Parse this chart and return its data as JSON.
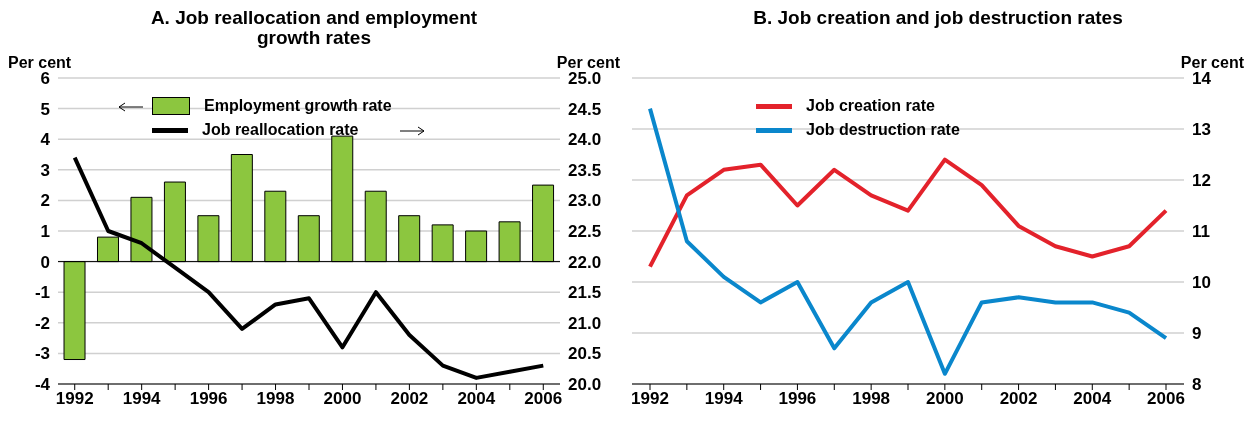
{
  "chart_data": [
    {
      "type": "bar",
      "title": "A. Job reallocation and employment growth rates",
      "ylabel": "Per cent",
      "y2label": "Per cent",
      "categories": [
        "1992",
        null,
        "1994",
        null,
        "1996",
        null,
        "1998",
        null,
        "2000",
        null,
        "2002",
        null,
        "2004",
        null,
        "2006"
      ],
      "series": [
        {
          "name": "Employment growth rate",
          "type": "bar",
          "color": "#8cc63f",
          "values": [
            -3.2,
            0.8,
            2.1,
            2.6,
            1.5,
            3.5,
            2.3,
            1.5,
            4.1,
            2.3,
            1.5,
            1.2,
            1.0,
            1.3,
            2.5
          ]
        },
        {
          "name": "Job reallocation rate",
          "type": "line",
          "axis": "y2",
          "color": "#000000",
          "values": [
            23.7,
            22.5,
            22.3,
            21.9,
            21.5,
            20.9,
            21.3,
            21.4,
            20.6,
            21.5,
            20.8,
            20.3,
            20.1,
            20.2,
            20.3
          ]
        }
      ],
      "ylim": [
        -4,
        6
      ],
      "yticks": [
        -4,
        -3,
        -2,
        -1,
        0,
        1,
        2,
        3,
        4,
        5,
        6
      ],
      "y2lim": [
        20,
        25
      ],
      "y2ticks": [
        {
          "value": 20,
          "label": "20.0"
        },
        {
          "value": 20.5,
          "label": "20.5"
        },
        {
          "value": 21,
          "label": "21.0"
        },
        {
          "value": 21.5,
          "label": "21.5"
        },
        {
          "value": 22,
          "label": "22.0"
        },
        {
          "value": 22.5,
          "label": "22.5"
        },
        {
          "value": 23,
          "label": "23.0"
        },
        {
          "value": 23.5,
          "label": "23.5"
        },
        {
          "value": 24,
          "label": "24.0"
        },
        {
          "value": 24.5,
          "label": "24.5"
        },
        {
          "value": 25,
          "label": "25.0"
        }
      ],
      "grid": "y",
      "legend": "top left"
    },
    {
      "type": "line",
      "title": "B. Job creation and job destruction rates",
      "ylabel": "Per cent",
      "categories": [
        "1992",
        null,
        "1994",
        null,
        "1996",
        null,
        "1998",
        null,
        "2000",
        null,
        "2002",
        null,
        "2004",
        null,
        "2006"
      ],
      "series": [
        {
          "name": "Job creation rate",
          "color": "#e3222b",
          "values": [
            10.3,
            11.7,
            12.2,
            12.3,
            11.5,
            12.2,
            11.7,
            11.4,
            12.4,
            11.9,
            11.1,
            10.7,
            10.5,
            10.7,
            11.4
          ]
        },
        {
          "name": "Job destruction rate",
          "color": "#0a87cc",
          "values": [
            13.4,
            10.8,
            10.1,
            9.6,
            10.0,
            8.7,
            9.6,
            10.0,
            8.2,
            9.6,
            9.7,
            9.6,
            9.6,
            9.4,
            8.9
          ]
        }
      ],
      "ylim": [
        8,
        14
      ],
      "yticks": [
        8,
        9,
        10,
        11,
        12,
        13,
        14
      ],
      "grid": "y",
      "legend": "top left"
    }
  ]
}
